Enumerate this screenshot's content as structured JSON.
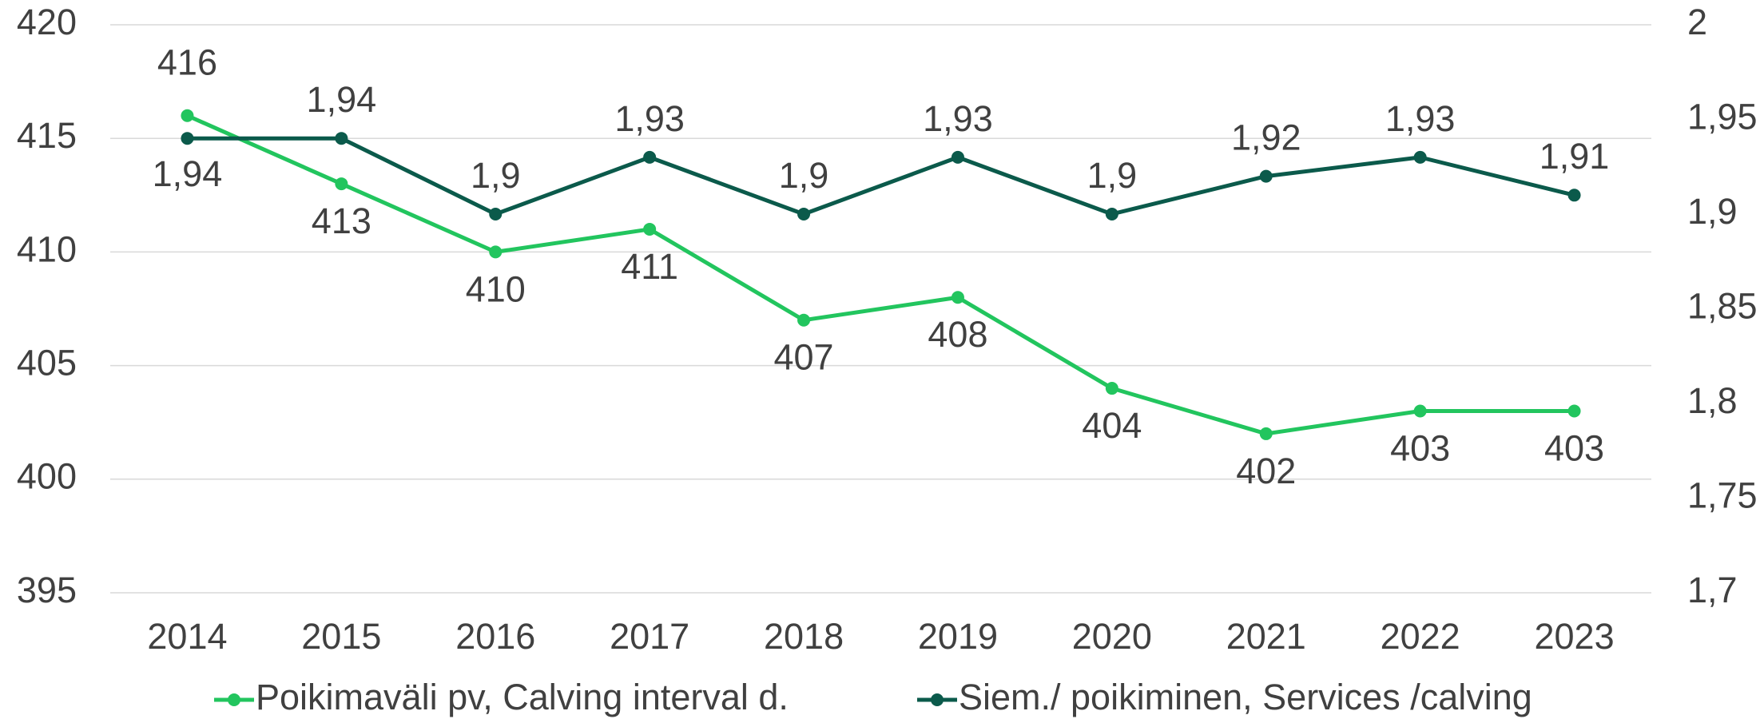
{
  "chart_data": {
    "type": "line",
    "categories": [
      "2014",
      "2015",
      "2016",
      "2017",
      "2018",
      "2019",
      "2020",
      "2021",
      "2022",
      "2023"
    ],
    "series": [
      {
        "name": "Poikimaväli pv, Calving interval d.",
        "color": "#22c55e",
        "values": [
          416,
          413,
          410,
          411,
          407,
          408,
          404,
          402,
          403,
          403
        ]
      },
      {
        "name": "Siem./ poikiminen, Services /calving",
        "color": "#0b5a4b",
        "axis": "y2",
        "values": [
          1.94,
          1.94,
          1.9,
          1.93,
          1.9,
          1.93,
          1.9,
          1.92,
          1.93,
          1.91
        ],
        "value_labels": [
          "1,94",
          "1,94",
          "1,9",
          "1,93",
          "1,9",
          "1,93",
          "1,9",
          "1,92",
          "1,93",
          "1,91"
        ]
      }
    ],
    "ylim": [
      395,
      420
    ],
    "yticks": [
      395,
      400,
      405,
      410,
      415,
      420
    ],
    "y2lim": [
      1.7,
      2
    ],
    "y2ticks": [
      {
        "value": 1.7,
        "label": "1,7"
      },
      {
        "value": 1.75,
        "label": "1,75"
      },
      {
        "value": 1.8,
        "label": "1,8"
      },
      {
        "value": 1.85,
        "label": "1,85"
      },
      {
        "value": 1.9,
        "label": "1,9"
      },
      {
        "value": 1.95,
        "label": "1,95"
      },
      2
    ],
    "grid": true,
    "legend": "bottom"
  }
}
